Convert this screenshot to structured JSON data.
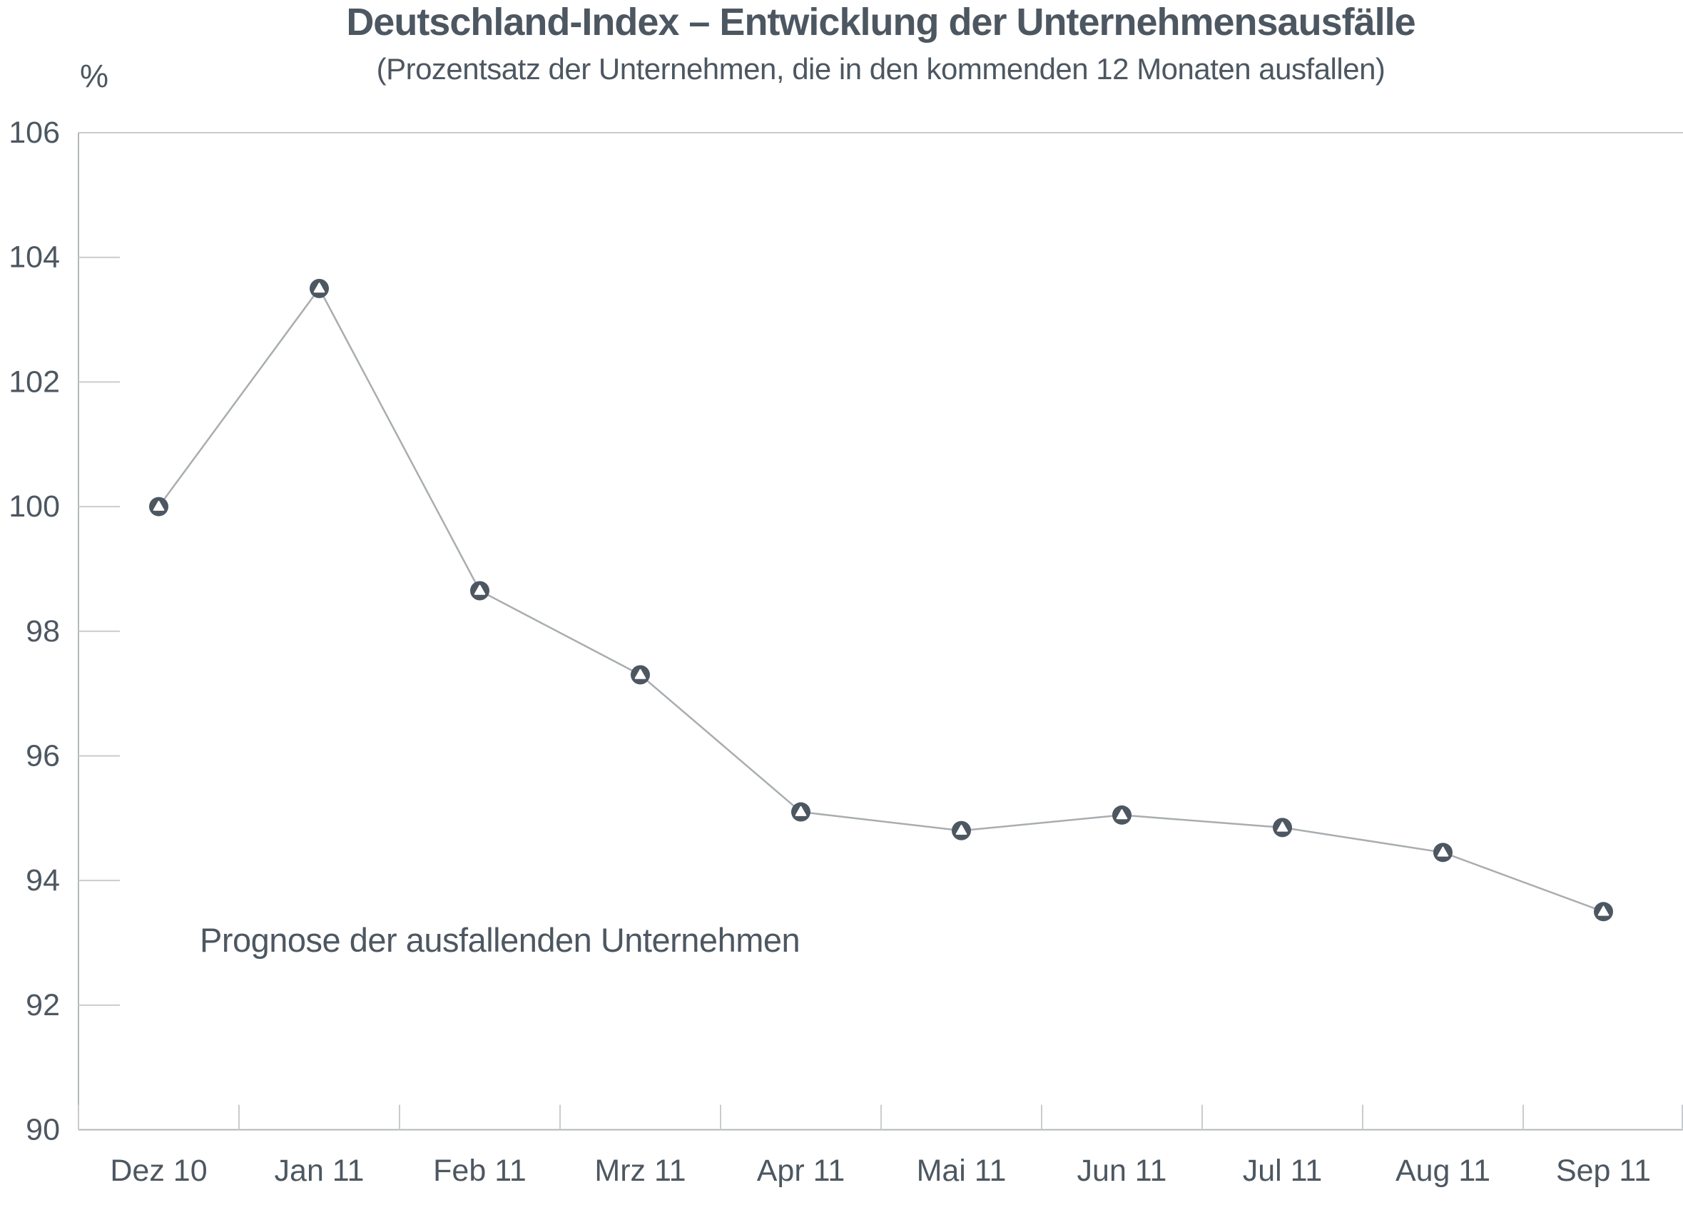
{
  "page": {
    "background_color": "#ffffff"
  },
  "chart_data": {
    "type": "line",
    "title": "Deutschland-Index – Entwicklung der Unternehmensausfälle",
    "subtitle": "(Prozentsatz der Unternehmen, die in den kommenden 12 Monaten ausfallen)",
    "y_axis_unit_label": "%",
    "annotation": "Prognose der ausfallenden Unternehmen",
    "categories": [
      "Dez 10",
      "Jan 11",
      "Feb 11",
      "Mrz 11",
      "Apr 11",
      "Mai 11",
      "Jun 11",
      "Jul 11",
      "Aug 11",
      "Sep 11"
    ],
    "series": [
      {
        "name": "Prognose der ausfallenden Unternehmen",
        "values": [
          100.0,
          103.5,
          98.65,
          97.3,
          95.1,
          94.8,
          95.05,
          94.85,
          94.45,
          93.5
        ]
      }
    ],
    "ylim": [
      90,
      106
    ],
    "yticks": [
      90,
      92,
      94,
      96,
      98,
      100,
      102,
      104,
      106
    ],
    "grid": "short-inward-ticks-only",
    "legend": "none",
    "marker_style": "dark circle with white upward triangle",
    "colors": {
      "text": "#4d5761",
      "marker_fill": "#4d5761",
      "marker_glyph": "#ffffff",
      "series_line": "#a8adb0",
      "axis_line": "#b2b7b9",
      "tick_line": "#c9ccce"
    }
  }
}
